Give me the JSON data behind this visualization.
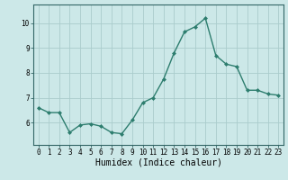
{
  "x": [
    0,
    1,
    2,
    3,
    4,
    5,
    6,
    7,
    8,
    9,
    10,
    11,
    12,
    13,
    14,
    15,
    16,
    17,
    18,
    19,
    20,
    21,
    22,
    23
  ],
  "y": [
    6.6,
    6.4,
    6.4,
    5.6,
    5.9,
    5.95,
    5.85,
    5.6,
    5.55,
    6.1,
    6.8,
    7.0,
    7.75,
    8.8,
    9.65,
    9.85,
    10.2,
    8.7,
    8.35,
    8.25,
    7.3,
    7.3,
    7.15,
    7.1
  ],
  "line_color": "#2d7d6e",
  "marker": "D",
  "marker_size": 2.0,
  "linewidth": 1.0,
  "xlabel": "Humidex (Indice chaleur)",
  "xlim": [
    -0.5,
    23.5
  ],
  "ylim": [
    5.1,
    10.75
  ],
  "yticks": [
    6,
    7,
    8,
    9,
    10
  ],
  "xticks": [
    0,
    1,
    2,
    3,
    4,
    5,
    6,
    7,
    8,
    9,
    10,
    11,
    12,
    13,
    14,
    15,
    16,
    17,
    18,
    19,
    20,
    21,
    22,
    23
  ],
  "bg_color": "#cce8e8",
  "grid_color": "#aacccc",
  "tick_fontsize": 5.5,
  "xlabel_fontsize": 7.0,
  "spine_color": "#336666"
}
